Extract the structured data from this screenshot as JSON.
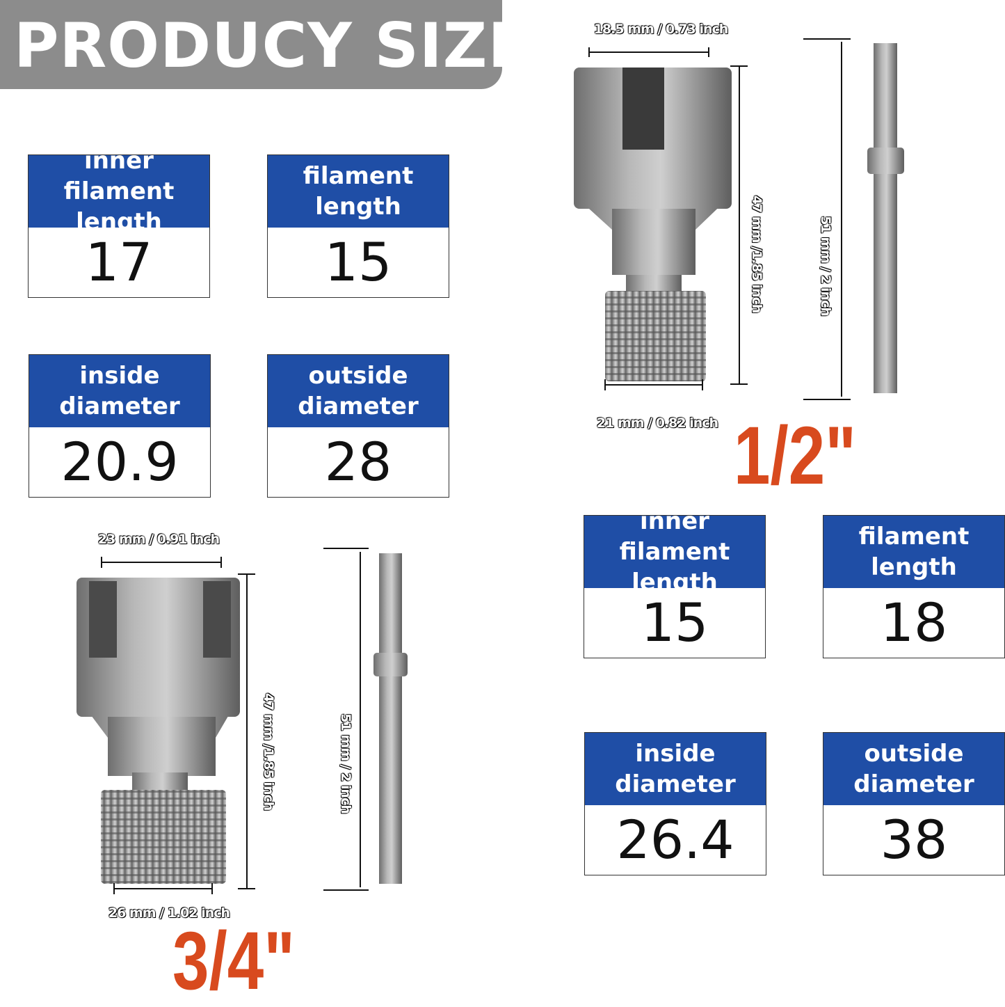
{
  "header": {
    "title": "PRODUCY SIZE"
  },
  "colors": {
    "header_bg": "#8c8c8c",
    "label_bg": "#1f4ea6",
    "size_text": "#d84a1e"
  },
  "half_inch": {
    "size_label": "1/2\"",
    "specs": [
      {
        "label": "inner filament\nlength",
        "value": "17"
      },
      {
        "label": "filament\nlength",
        "value": "15"
      },
      {
        "label": "inside\ndiameter",
        "value": "20.9"
      },
      {
        "label": "outside\ndiameter",
        "value": "28"
      }
    ],
    "dims": {
      "top_width": "18.5 mm / 0.73 inch",
      "height": "47 mm /1.85 inch",
      "shaft_length": "51 mm / 2 inch",
      "bottom_width": "21 mm / 0.82 inch"
    }
  },
  "three_quarter_inch": {
    "size_label": "3/4\"",
    "specs": [
      {
        "label": "inner filament\nlength",
        "value": "15"
      },
      {
        "label": "filament\nlength",
        "value": "18"
      },
      {
        "label": "inside\ndiameter",
        "value": "26.4"
      },
      {
        "label": "outside\ndiameter",
        "value": "38"
      }
    ],
    "dims": {
      "top_width": "23 mm / 0.91 inch",
      "height": "47 mm /1.85 inch",
      "shaft_length": "51 mm / 2 inch",
      "bottom_width": "26 mm / 1.02 inch"
    }
  }
}
